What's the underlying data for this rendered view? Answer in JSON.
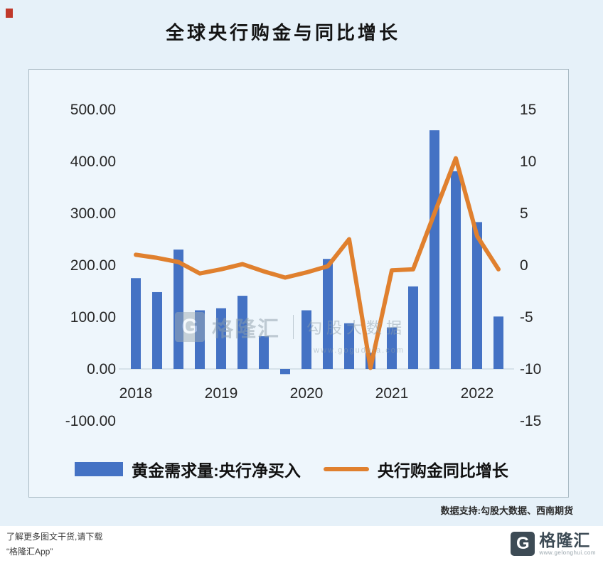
{
  "page": {
    "data_support": "数据支持:勾股大数据、西南期货"
  },
  "watermark": {
    "logo_letter": "G",
    "brand": "格隆汇",
    "product": "勾股大数据",
    "url": "www.gogudata.com"
  },
  "footer": {
    "line1": "了解更多图文干货,请下载",
    "line2": "“格隆汇App”",
    "logo_letter": "G",
    "brand": "格隆汇",
    "url": "www.gelonghui.com"
  },
  "chart_data": {
    "type": "bar",
    "title": "全球央行购金与同比增长",
    "categories": [
      "2018Q1",
      "2018Q2",
      "2018Q3",
      "2018Q4",
      "2019Q1",
      "2019Q2",
      "2019Q3",
      "2019Q4",
      "2020Q1",
      "2020Q2",
      "2020Q3",
      "2020Q4",
      "2021Q1",
      "2021Q2",
      "2021Q3",
      "2021Q4",
      "2022Q1",
      "2022Q2"
    ],
    "x_tick_labels": [
      "2018",
      "2019",
      "2020",
      "2021",
      "2022"
    ],
    "series": [
      {
        "name": "黄金需求量:央行净买入",
        "type": "bar",
        "axis": "left",
        "color": "#4472c4",
        "values": [
          175,
          148,
          230,
          113,
          117,
          141,
          63,
          -10,
          113,
          212,
          88,
          31,
          80,
          159,
          460,
          381,
          283,
          101
        ]
      },
      {
        "name": "央行购金同比增长",
        "type": "line",
        "axis": "right",
        "color": "#e0802e",
        "values": [
          1.0,
          0.7,
          0.3,
          -0.8,
          -0.4,
          0.1,
          -0.6,
          -1.2,
          -0.7,
          -0.1,
          2.5,
          -9.9,
          -0.5,
          -0.4,
          5.0,
          10.3,
          2.8,
          -0.4
        ]
      }
    ],
    "left_axis": {
      "min": -100,
      "max": 500,
      "step": 100,
      "ticks": [
        "500.00",
        "400.00",
        "300.00",
        "200.00",
        "100.00",
        "0.00",
        "-100.00"
      ]
    },
    "right_axis": {
      "min": -15,
      "max": 15,
      "step": 5,
      "ticks": [
        "15",
        "10",
        "5",
        "0",
        "-5",
        "-10",
        "-15"
      ]
    },
    "grid": "zero-line-only",
    "legend_position": "bottom"
  }
}
